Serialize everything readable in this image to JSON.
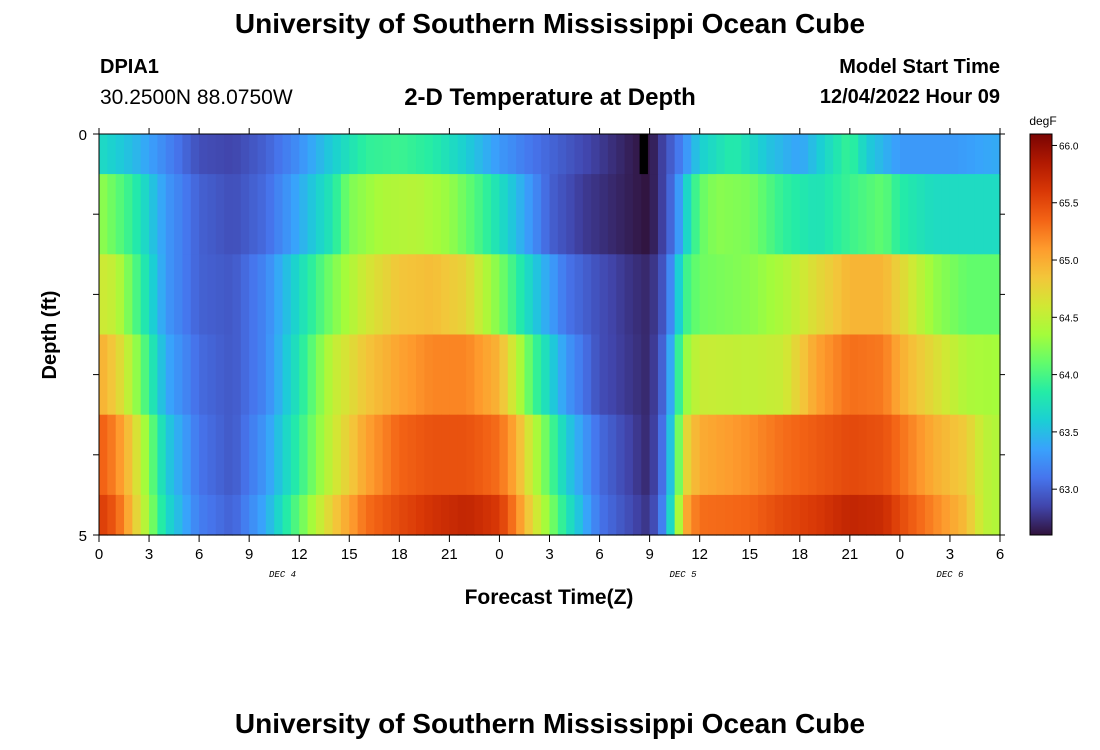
{
  "page": {
    "title_top": "University of Southern Mississippi Ocean Cube",
    "title_bottom": "University of Southern Mississippi Ocean Cube",
    "station": {
      "name": "DPIA1",
      "coords": "30.2500N  88.0750W"
    },
    "chart_title": "2-D Temperature at Depth",
    "model_start": {
      "label": "Model Start Time",
      "value": "12/04/2022 Hour 09"
    }
  },
  "chart_data": {
    "type": "heatmap",
    "xlabel": "Forecast Time(Z)",
    "ylabel": "Depth (ft)",
    "x_range": [
      0,
      54
    ],
    "y_range": [
      0,
      5
    ],
    "y_ticks": [
      {
        "value": 0,
        "label": "0"
      },
      {
        "value": 5,
        "label": "5"
      }
    ],
    "x_ticks": [
      {
        "value": 0,
        "label": "0"
      },
      {
        "value": 3,
        "label": "3"
      },
      {
        "value": 6,
        "label": "6"
      },
      {
        "value": 9,
        "label": "9"
      },
      {
        "value": 12,
        "label": "12"
      },
      {
        "value": 15,
        "label": "15"
      },
      {
        "value": 18,
        "label": "18"
      },
      {
        "value": 21,
        "label": "21"
      },
      {
        "value": 24,
        "label": "0"
      },
      {
        "value": 27,
        "label": "3"
      },
      {
        "value": 30,
        "label": "6"
      },
      {
        "value": 33,
        "label": "9"
      },
      {
        "value": 36,
        "label": "12"
      },
      {
        "value": 39,
        "label": "15"
      },
      {
        "value": 42,
        "label": "18"
      },
      {
        "value": 45,
        "label": "21"
      },
      {
        "value": 48,
        "label": "0"
      },
      {
        "value": 51,
        "label": "3"
      },
      {
        "value": 54,
        "label": "6"
      }
    ],
    "date_labels": [
      {
        "value": 11,
        "label": "DEC 4"
      },
      {
        "value": 35,
        "label": "DEC 5"
      },
      {
        "value": 51,
        "label": "DEC 6"
      }
    ],
    "colorbar": {
      "unit": "degF",
      "range": [
        62.6,
        66.1
      ],
      "ticks": [
        63.0,
        63.5,
        64.0,
        64.5,
        65.0,
        65.5,
        66.0
      ],
      "tick_labels": [
        "63.0",
        "63.5",
        "64.0",
        "64.5",
        "65.0",
        "65.5",
        "66.0"
      ]
    },
    "depth_layers": [
      {
        "top": 0.0,
        "bottom": 0.5,
        "keys": [
          [
            0,
            63.7
          ],
          [
            2,
            63.5
          ],
          [
            4,
            63.2
          ],
          [
            6,
            62.9
          ],
          [
            8,
            62.85
          ],
          [
            10,
            63.0
          ],
          [
            12,
            63.25
          ],
          [
            14,
            63.6
          ],
          [
            16,
            63.9
          ],
          [
            18,
            63.95
          ],
          [
            20,
            63.85
          ],
          [
            22,
            63.6
          ],
          [
            24,
            63.3
          ],
          [
            26,
            63.1
          ],
          [
            28,
            62.95
          ],
          [
            30,
            62.8
          ],
          [
            32,
            62.65
          ],
          [
            33,
            62.6
          ],
          [
            34,
            62.9
          ],
          [
            35,
            63.2
          ],
          [
            36,
            63.6
          ],
          [
            38,
            63.85
          ],
          [
            40,
            63.55
          ],
          [
            42,
            63.35
          ],
          [
            44,
            63.75
          ],
          [
            45,
            63.95
          ],
          [
            46,
            63.6
          ],
          [
            48,
            63.3
          ],
          [
            51,
            63.3
          ],
          [
            54,
            63.4
          ]
        ]
      },
      {
        "top": 0.5,
        "bottom": 1.5,
        "keys": [
          [
            0,
            64.3
          ],
          [
            1,
            64.1
          ],
          [
            2,
            63.9
          ],
          [
            3,
            63.6
          ],
          [
            4,
            63.3
          ],
          [
            6,
            63.0
          ],
          [
            8,
            62.9
          ],
          [
            10,
            63.05
          ],
          [
            12,
            63.4
          ],
          [
            14,
            63.8
          ],
          [
            15,
            64.2
          ],
          [
            17,
            64.4
          ],
          [
            19,
            64.45
          ],
          [
            21,
            64.3
          ],
          [
            23,
            63.95
          ],
          [
            25,
            63.5
          ],
          [
            27,
            63.0
          ],
          [
            29,
            62.8
          ],
          [
            31,
            62.7
          ],
          [
            33,
            62.6
          ],
          [
            34,
            62.9
          ],
          [
            34.6,
            63.2
          ],
          [
            35.3,
            63.7
          ],
          [
            36,
            64.1
          ],
          [
            37,
            64.25
          ],
          [
            39,
            64.2
          ],
          [
            41,
            63.9
          ],
          [
            43,
            63.75
          ],
          [
            45,
            63.95
          ],
          [
            47,
            64.1
          ],
          [
            48,
            63.85
          ],
          [
            50,
            63.7
          ],
          [
            54,
            63.7
          ]
        ]
      },
      {
        "top": 1.5,
        "bottom": 2.5,
        "keys": [
          [
            0,
            64.6
          ],
          [
            1,
            64.5
          ],
          [
            2,
            64.1
          ],
          [
            3,
            63.7
          ],
          [
            4,
            63.3
          ],
          [
            6,
            63.0
          ],
          [
            8,
            62.95
          ],
          [
            10,
            63.2
          ],
          [
            12,
            63.7
          ],
          [
            14,
            64.2
          ],
          [
            16,
            64.6
          ],
          [
            18,
            64.85
          ],
          [
            20,
            64.9
          ],
          [
            22,
            64.75
          ],
          [
            24,
            64.2
          ],
          [
            26,
            63.6
          ],
          [
            28,
            63.1
          ],
          [
            30,
            62.9
          ],
          [
            32,
            62.75
          ],
          [
            33,
            62.7
          ],
          [
            34,
            63.0
          ],
          [
            34.6,
            63.5
          ],
          [
            35.3,
            64.0
          ],
          [
            36,
            64.15
          ],
          [
            39,
            64.25
          ],
          [
            41,
            64.4
          ],
          [
            43,
            64.7
          ],
          [
            45,
            64.95
          ],
          [
            47,
            64.95
          ],
          [
            48,
            64.75
          ],
          [
            50,
            64.3
          ],
          [
            52,
            64.1
          ],
          [
            54,
            64.1
          ]
        ]
      },
      {
        "top": 2.5,
        "bottom": 3.5,
        "keys": [
          [
            0,
            65.0
          ],
          [
            1,
            64.8
          ],
          [
            2,
            64.4
          ],
          [
            3,
            63.9
          ],
          [
            4,
            63.4
          ],
          [
            6,
            63.05
          ],
          [
            8,
            62.95
          ],
          [
            10,
            63.2
          ],
          [
            12,
            63.8
          ],
          [
            14,
            64.5
          ],
          [
            16,
            64.85
          ],
          [
            18,
            65.05
          ],
          [
            20,
            65.2
          ],
          [
            22,
            65.2
          ],
          [
            24,
            64.95
          ],
          [
            25,
            64.5
          ],
          [
            26,
            64.0
          ],
          [
            28,
            63.3
          ],
          [
            30,
            62.9
          ],
          [
            33,
            62.7
          ],
          [
            34,
            63.1
          ],
          [
            34.6,
            63.8
          ],
          [
            35.3,
            64.35
          ],
          [
            36,
            64.55
          ],
          [
            39,
            64.5
          ],
          [
            41,
            64.55
          ],
          [
            43,
            65.05
          ],
          [
            45,
            65.3
          ],
          [
            47,
            65.25
          ],
          [
            48,
            65.0
          ],
          [
            50,
            64.7
          ],
          [
            52,
            64.4
          ],
          [
            54,
            64.35
          ]
        ]
      },
      {
        "top": 3.5,
        "bottom": 4.5,
        "keys": [
          [
            0,
            65.4
          ],
          [
            1,
            65.2
          ],
          [
            2,
            64.8
          ],
          [
            3,
            64.2
          ],
          [
            4,
            63.6
          ],
          [
            6,
            63.1
          ],
          [
            8,
            62.95
          ],
          [
            10,
            63.3
          ],
          [
            12,
            63.9
          ],
          [
            14,
            64.55
          ],
          [
            16,
            65.05
          ],
          [
            18,
            65.35
          ],
          [
            20,
            65.45
          ],
          [
            22,
            65.45
          ],
          [
            24,
            65.3
          ],
          [
            25,
            65.0
          ],
          [
            26,
            64.5
          ],
          [
            28,
            63.6
          ],
          [
            30,
            63.05
          ],
          [
            33,
            62.7
          ],
          [
            34,
            63.2
          ],
          [
            34.6,
            64.0
          ],
          [
            35.3,
            64.8
          ],
          [
            36,
            65.0
          ],
          [
            39,
            65.15
          ],
          [
            41,
            65.3
          ],
          [
            43,
            65.4
          ],
          [
            45,
            65.5
          ],
          [
            47,
            65.45
          ],
          [
            48,
            65.3
          ],
          [
            50,
            65.0
          ],
          [
            52,
            64.8
          ],
          [
            53,
            64.5
          ],
          [
            54,
            64.4
          ]
        ]
      },
      {
        "top": 4.5,
        "bottom": 5.0,
        "keys": [
          [
            0,
            65.6
          ],
          [
            1,
            65.4
          ],
          [
            2,
            64.9
          ],
          [
            3,
            64.3
          ],
          [
            4,
            63.7
          ],
          [
            6,
            63.15
          ],
          [
            8,
            63.0
          ],
          [
            10,
            63.4
          ],
          [
            12,
            64.1
          ],
          [
            14,
            64.8
          ],
          [
            16,
            65.3
          ],
          [
            18,
            65.5
          ],
          [
            20,
            65.65
          ],
          [
            22,
            65.75
          ],
          [
            24,
            65.6
          ],
          [
            25,
            65.2
          ],
          [
            26,
            64.7
          ],
          [
            28,
            63.8
          ],
          [
            30,
            63.1
          ],
          [
            33,
            62.75
          ],
          [
            34,
            63.3
          ],
          [
            34.6,
            64.2
          ],
          [
            35.3,
            65.1
          ],
          [
            36,
            65.3
          ],
          [
            39,
            65.35
          ],
          [
            41,
            65.5
          ],
          [
            43,
            65.6
          ],
          [
            45,
            65.75
          ],
          [
            47,
            65.7
          ],
          [
            48,
            65.5
          ],
          [
            50,
            65.2
          ],
          [
            52,
            64.9
          ],
          [
            53,
            64.5
          ],
          [
            54,
            64.4
          ]
        ]
      }
    ],
    "column_step_hours": 0.5,
    "missing_cells": [
      {
        "x_from": 32.4,
        "x_to": 32.9,
        "y_from": 0.0,
        "y_to": 0.5
      }
    ],
    "colormap": [
      "#30123b",
      "#4145ab",
      "#4675ed",
      "#39a2fc",
      "#1bcfd4",
      "#24eca6",
      "#61fc6c",
      "#a4fc3b",
      "#d1e834",
      "#f3c63a",
      "#fe9b2d",
      "#f36315",
      "#d93806",
      "#b11901",
      "#7a0403"
    ]
  }
}
